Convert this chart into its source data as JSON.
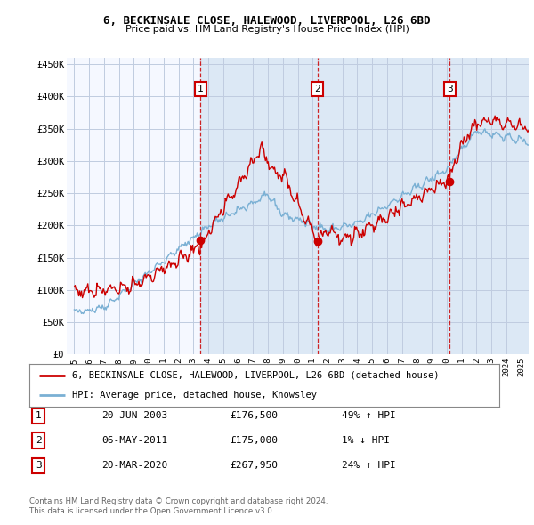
{
  "title": "6, BECKINSALE CLOSE, HALEWOOD, LIVERPOOL, L26 6BD",
  "subtitle": "Price paid vs. HM Land Registry's House Price Index (HPI)",
  "red_label": "6, BECKINSALE CLOSE, HALEWOOD, LIVERPOOL, L26 6BD (detached house)",
  "blue_label": "HPI: Average price, detached house, Knowsley",
  "footer1": "Contains HM Land Registry data © Crown copyright and database right 2024.",
  "footer2": "This data is licensed under the Open Government Licence v3.0.",
  "sales": [
    {
      "num": 1,
      "date": "20-JUN-2003",
      "price": "£176,500",
      "change": "49% ↑ HPI",
      "year": 2003.47,
      "price_val": 176500
    },
    {
      "num": 2,
      "date": "06-MAY-2011",
      "price": "£175,000",
      "change": "1% ↓ HPI",
      "year": 2011.34,
      "price_val": 175000
    },
    {
      "num": 3,
      "date": "20-MAR-2020",
      "price": "£267,950",
      "change": "24% ↑ HPI",
      "year": 2020.21,
      "price_val": 267950
    }
  ],
  "ylim": [
    0,
    460000
  ],
  "xlim_start": 1994.5,
  "xlim_end": 2025.5,
  "yticks": [
    0,
    50000,
    100000,
    150000,
    200000,
    250000,
    300000,
    350000,
    400000,
    450000
  ],
  "ytick_labels": [
    "£0",
    "£50K",
    "£100K",
    "£150K",
    "£200K",
    "£250K",
    "£300K",
    "£350K",
    "£400K",
    "£450K"
  ],
  "xticks": [
    1995,
    1996,
    1997,
    1998,
    1999,
    2000,
    2001,
    2002,
    2003,
    2004,
    2005,
    2006,
    2007,
    2008,
    2009,
    2010,
    2011,
    2012,
    2013,
    2014,
    2015,
    2016,
    2017,
    2018,
    2019,
    2020,
    2021,
    2022,
    2023,
    2024,
    2025
  ],
  "bg_color": "#dce8f5",
  "grid_color": "#c8d8e8",
  "white_bg": "#f5f8ff",
  "red_color": "#cc0000",
  "blue_color": "#7ab0d4",
  "shade_color": "#dce8f5"
}
